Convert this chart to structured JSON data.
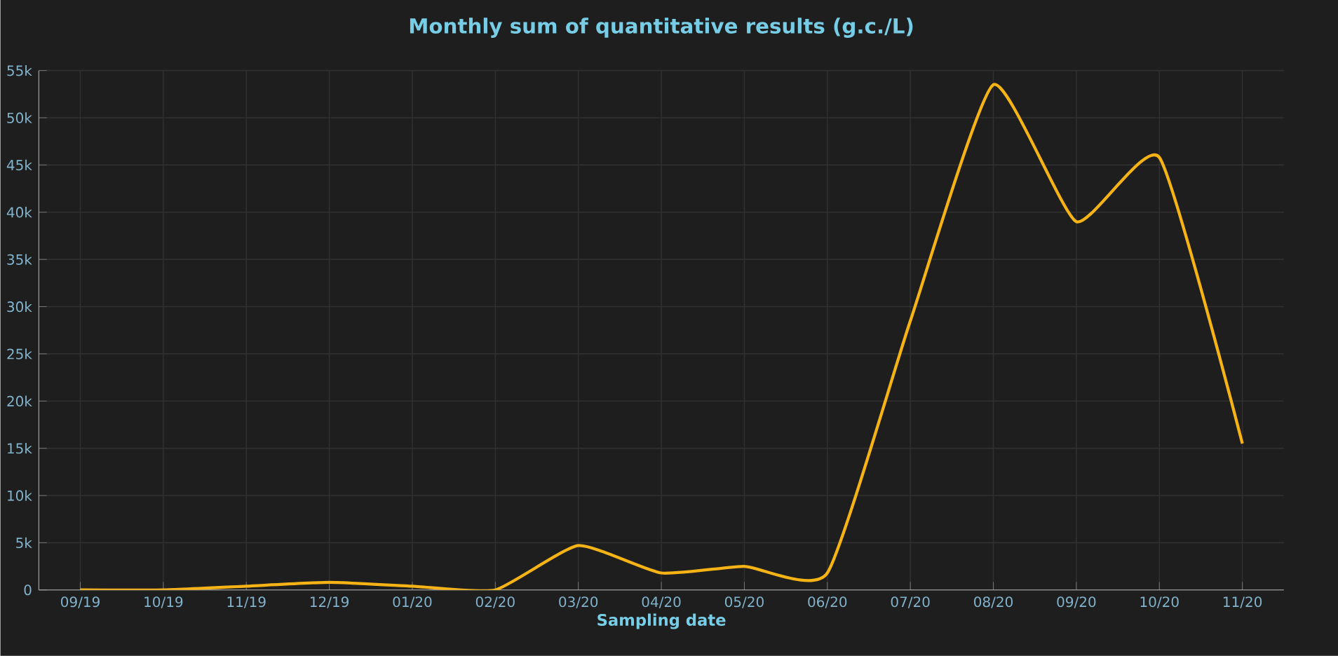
{
  "chart_data": {
    "type": "line",
    "title": "Monthly sum of quantitative results (g.c./L)",
    "xlabel": "Sampling date",
    "categories": [
      "09/19",
      "10/19",
      "11/19",
      "12/19",
      "01/20",
      "02/20",
      "03/20",
      "04/20",
      "05/20",
      "06/20",
      "07/20",
      "08/20",
      "09/20",
      "10/20",
      "11/20"
    ],
    "series": [
      {
        "color": "#f5b316",
        "values": [
          0,
          0,
          400,
          800,
          400,
          0,
          4700,
          1800,
          2500,
          1800,
          28500,
          53500,
          39000,
          45800,
          15500
        ]
      }
    ],
    "ylim": [
      0,
      55000
    ],
    "yticks": [
      0,
      {
        "value": 5000,
        "label": "5k"
      },
      {
        "value": 10000,
        "label": "10k"
      },
      {
        "value": 15000,
        "label": "15k"
      },
      {
        "value": 20000,
        "label": "20k"
      },
      {
        "value": 25000,
        "label": "25k"
      },
      {
        "value": 30000,
        "label": "30k"
      },
      {
        "value": 35000,
        "label": "35k"
      },
      {
        "value": 40000,
        "label": "40k"
      },
      {
        "value": 45000,
        "label": "45k"
      },
      {
        "value": 50000,
        "label": "50k"
      },
      {
        "value": 55000,
        "label": "55k"
      }
    ],
    "grid": true
  }
}
